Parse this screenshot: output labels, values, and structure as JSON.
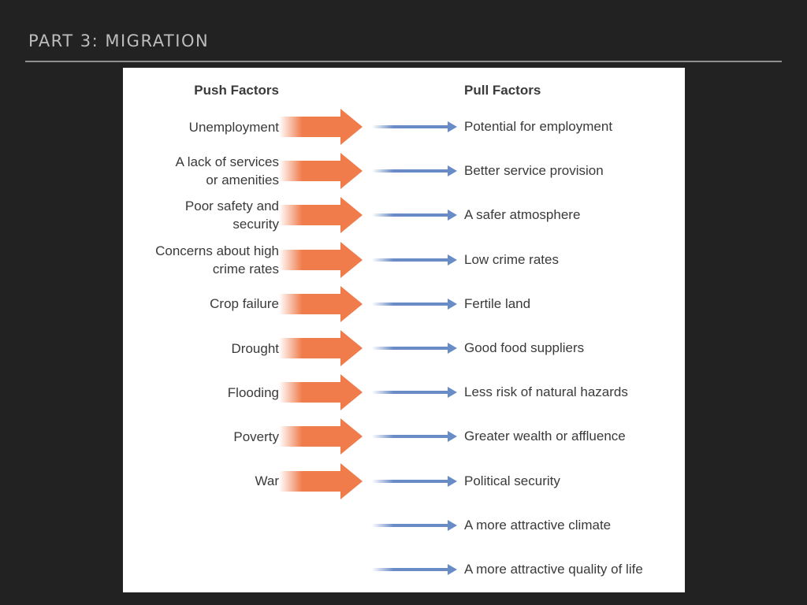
{
  "slide": {
    "title": "PART 3: MIGRATION"
  },
  "diagram": {
    "push_header": "Push Factors",
    "pull_header": "Pull Factors",
    "colors": {
      "push_arrow": "#f07b4b",
      "pull_arrow": "#6a8cc6",
      "text": "#3a3a3a"
    },
    "push_factors": [
      "Unemployment",
      "A lack of services\nor amenities",
      "Poor safety and\nsecurity",
      "Concerns about high\ncrime rates",
      "Crop failure",
      "Drought",
      "Flooding",
      "Poverty",
      "War"
    ],
    "pull_factors": [
      "Potential for employment",
      "Better service provision",
      "A safer atmosphere",
      "Low crime rates",
      "Fertile land",
      "Good food suppliers",
      "Less risk of natural hazards",
      "Greater wealth or affluence",
      "Political security",
      "A more attractive climate",
      "A more attractive quality of life"
    ]
  }
}
